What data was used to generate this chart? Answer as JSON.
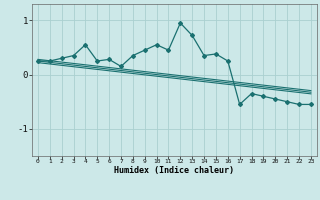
{
  "xlabel": "Humidex (Indice chaleur)",
  "ylabel": "",
  "bg_color": "#cce8e8",
  "plot_bg_color": "#cce8e8",
  "line_color": "#1a7070",
  "grid_color": "#aad0d0",
  "x_values": [
    0,
    1,
    2,
    3,
    4,
    5,
    6,
    7,
    8,
    9,
    10,
    11,
    12,
    13,
    14,
    15,
    16,
    17,
    18,
    19,
    20,
    21,
    22,
    23
  ],
  "y_main": [
    0.25,
    0.25,
    0.3,
    0.35,
    0.55,
    0.25,
    0.28,
    0.15,
    0.35,
    0.45,
    0.55,
    0.45,
    0.95,
    0.72,
    0.35,
    0.38,
    0.25,
    -0.55,
    -0.35,
    -0.4,
    -0.45,
    -0.5,
    -0.55,
    -0.55
  ],
  "y_trend1": [
    0.28,
    0.255,
    0.23,
    0.205,
    0.18,
    0.155,
    0.13,
    0.105,
    0.08,
    0.055,
    0.03,
    0.005,
    -0.02,
    -0.045,
    -0.07,
    -0.095,
    -0.12,
    -0.145,
    -0.17,
    -0.195,
    -0.22,
    -0.245,
    -0.27,
    -0.295
  ],
  "y_trend2": [
    0.25,
    0.225,
    0.2,
    0.175,
    0.15,
    0.125,
    0.1,
    0.075,
    0.05,
    0.025,
    0.0,
    -0.025,
    -0.05,
    -0.075,
    -0.1,
    -0.125,
    -0.15,
    -0.175,
    -0.2,
    -0.225,
    -0.25,
    -0.275,
    -0.3,
    -0.325
  ],
  "y_trend3": [
    0.22,
    0.195,
    0.17,
    0.145,
    0.12,
    0.095,
    0.07,
    0.045,
    0.02,
    -0.005,
    -0.03,
    -0.055,
    -0.08,
    -0.105,
    -0.13,
    -0.155,
    -0.18,
    -0.205,
    -0.23,
    -0.255,
    -0.28,
    -0.305,
    -0.33,
    -0.355
  ],
  "ylim": [
    -1.5,
    1.3
  ],
  "yticks": [
    -1,
    0,
    1
  ],
  "xticks": [
    0,
    1,
    2,
    3,
    4,
    5,
    6,
    7,
    8,
    9,
    10,
    11,
    12,
    13,
    14,
    15,
    16,
    17,
    18,
    19,
    20,
    21,
    22,
    23
  ]
}
